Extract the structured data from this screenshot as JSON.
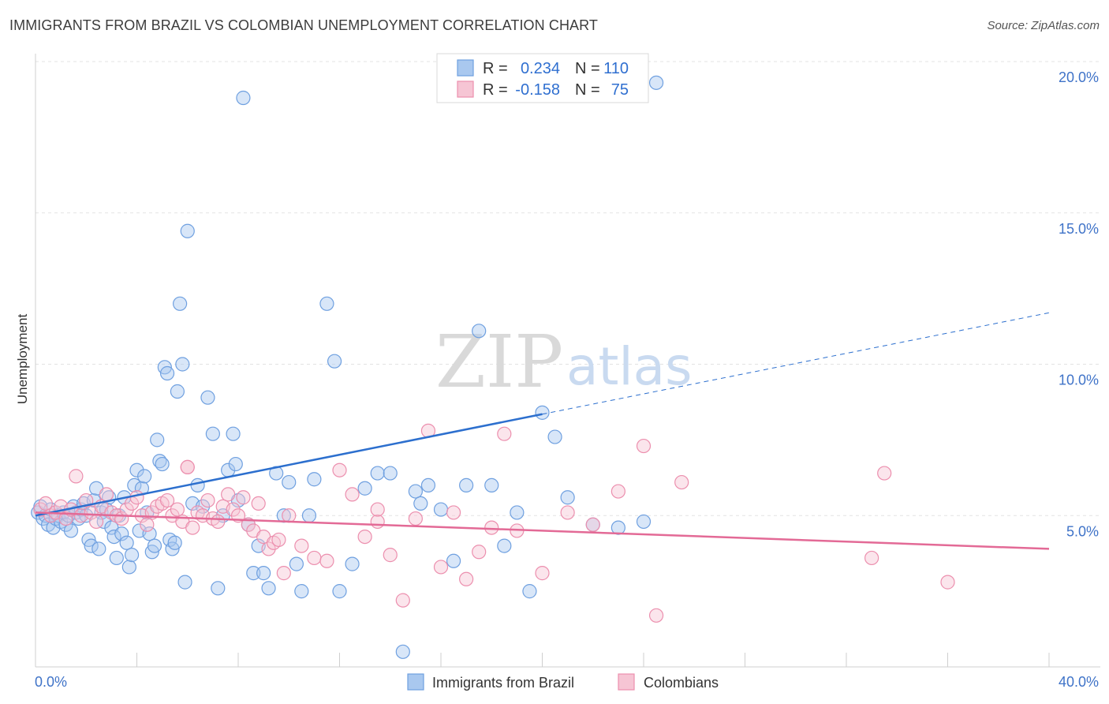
{
  "chart_data": {
    "type": "scatter",
    "title": "IMMIGRANTS FROM BRAZIL VS COLOMBIAN UNEMPLOYMENT CORRELATION CHART",
    "source": "Source: ZipAtlas.com",
    "ylabel": "Unemployment",
    "xlim": [
      0,
      40
    ],
    "ylim": [
      0,
      20
    ],
    "x_tick_labels": [
      "0.0%",
      "40.0%"
    ],
    "y_ticks": [
      5,
      10,
      15,
      20
    ],
    "y_tick_labels": [
      "5.0%",
      "10.0%",
      "15.0%",
      "20.0%"
    ],
    "grid": true,
    "legend_position": "top-center",
    "watermark": {
      "zip": "ZIP",
      "atlas": "atlas"
    },
    "legend": [
      {
        "r_label": "R =",
        "r_value": "0.234",
        "n_label": "N =",
        "n_value": "110"
      },
      {
        "r_label": "R =",
        "r_value": "-0.158",
        "n_label": "N =",
        "n_value": "75"
      }
    ],
    "series": [
      {
        "name": "Immigrants from Brazil",
        "color": "#6fa0e0",
        "fill": "#a9c8ef",
        "trend_color": "#2c6fce",
        "trend": {
          "x0": 0,
          "y0": 5.0,
          "x1": 20.0,
          "y1": 8.35,
          "dash_x1": 40.0,
          "dash_y1": 11.7
        },
        "points": [
          [
            0.1,
            5.1
          ],
          [
            0.2,
            5.3
          ],
          [
            0.3,
            4.9
          ],
          [
            0.4,
            5.0
          ],
          [
            0.5,
            4.7
          ],
          [
            0.6,
            5.2
          ],
          [
            0.7,
            4.6
          ],
          [
            0.8,
            4.9
          ],
          [
            0.9,
            5.0
          ],
          [
            1.0,
            4.8
          ],
          [
            1.1,
            5.1
          ],
          [
            1.2,
            4.7
          ],
          [
            1.3,
            5.0
          ],
          [
            1.4,
            4.5
          ],
          [
            1.5,
            5.3
          ],
          [
            1.6,
            5.1
          ],
          [
            1.7,
            4.9
          ],
          [
            1.8,
            5.2
          ],
          [
            1.9,
            5.4
          ],
          [
            2.0,
            5.0
          ],
          [
            2.1,
            4.2
          ],
          [
            2.2,
            4.0
          ],
          [
            2.3,
            5.5
          ],
          [
            2.4,
            5.9
          ],
          [
            2.5,
            3.9
          ],
          [
            2.6,
            5.1
          ],
          [
            2.7,
            4.8
          ],
          [
            2.8,
            5.2
          ],
          [
            2.9,
            5.6
          ],
          [
            3.0,
            4.6
          ],
          [
            3.1,
            4.3
          ],
          [
            3.2,
            3.6
          ],
          [
            3.3,
            5.0
          ],
          [
            3.4,
            4.4
          ],
          [
            3.5,
            5.6
          ],
          [
            3.6,
            4.1
          ],
          [
            3.7,
            3.3
          ],
          [
            3.8,
            3.7
          ],
          [
            3.9,
            6.0
          ],
          [
            4.0,
            6.5
          ],
          [
            4.1,
            4.5
          ],
          [
            4.2,
            5.9
          ],
          [
            4.3,
            6.3
          ],
          [
            4.4,
            5.1
          ],
          [
            4.5,
            4.4
          ],
          [
            4.6,
            3.8
          ],
          [
            4.7,
            4.0
          ],
          [
            4.8,
            7.5
          ],
          [
            4.9,
            6.8
          ],
          [
            5.0,
            6.7
          ],
          [
            5.1,
            9.9
          ],
          [
            5.2,
            9.7
          ],
          [
            5.3,
            4.2
          ],
          [
            5.4,
            3.9
          ],
          [
            5.5,
            4.1
          ],
          [
            5.6,
            9.1
          ],
          [
            5.7,
            12.0
          ],
          [
            5.8,
            10.0
          ],
          [
            5.9,
            2.8
          ],
          [
            6.0,
            14.4
          ],
          [
            6.2,
            5.4
          ],
          [
            6.4,
            6.0
          ],
          [
            6.6,
            5.3
          ],
          [
            6.8,
            8.9
          ],
          [
            7.0,
            7.7
          ],
          [
            7.2,
            2.6
          ],
          [
            7.4,
            5.0
          ],
          [
            7.6,
            6.5
          ],
          [
            7.8,
            7.7
          ],
          [
            7.9,
            6.7
          ],
          [
            8.0,
            5.5
          ],
          [
            8.2,
            18.8
          ],
          [
            8.4,
            4.7
          ],
          [
            8.6,
            3.1
          ],
          [
            8.8,
            4.0
          ],
          [
            9.0,
            3.1
          ],
          [
            9.2,
            2.6
          ],
          [
            9.5,
            6.4
          ],
          [
            9.8,
            5.0
          ],
          [
            10.0,
            6.1
          ],
          [
            10.3,
            3.4
          ],
          [
            10.5,
            2.5
          ],
          [
            10.8,
            5.0
          ],
          [
            11.0,
            6.2
          ],
          [
            11.5,
            12.0
          ],
          [
            11.8,
            10.1
          ],
          [
            12.0,
            2.5
          ],
          [
            12.5,
            3.4
          ],
          [
            13.0,
            5.9
          ],
          [
            13.5,
            6.4
          ],
          [
            14.0,
            6.4
          ],
          [
            14.5,
            0.5
          ],
          [
            15.0,
            5.8
          ],
          [
            15.5,
            6.0
          ],
          [
            16.0,
            5.2
          ],
          [
            16.5,
            3.5
          ],
          [
            17.0,
            6.0
          ],
          [
            17.5,
            11.1
          ],
          [
            18.0,
            6.0
          ],
          [
            18.5,
            4.0
          ],
          [
            19.0,
            5.1
          ],
          [
            19.5,
            2.5
          ],
          [
            20.0,
            8.4
          ],
          [
            20.5,
            7.6
          ],
          [
            21.0,
            5.6
          ],
          [
            22.0,
            4.7
          ],
          [
            23.0,
            4.6
          ],
          [
            24.0,
            4.8
          ],
          [
            24.5,
            19.3
          ],
          [
            15.2,
            5.4
          ]
        ]
      },
      {
        "name": "Colombians",
        "color": "#ec8fae",
        "fill": "#f6c5d4",
        "trend_color": "#e36a96",
        "trend": {
          "x0": 0,
          "y0": 5.1,
          "x1": 40.0,
          "y1": 3.9
        },
        "points": [
          [
            0.2,
            5.2
          ],
          [
            0.4,
            5.4
          ],
          [
            0.6,
            5.0
          ],
          [
            0.8,
            5.1
          ],
          [
            1.0,
            5.3
          ],
          [
            1.2,
            4.9
          ],
          [
            1.4,
            5.2
          ],
          [
            1.6,
            6.3
          ],
          [
            1.8,
            5.0
          ],
          [
            2.0,
            5.5
          ],
          [
            2.2,
            5.1
          ],
          [
            2.4,
            4.8
          ],
          [
            2.6,
            5.3
          ],
          [
            2.8,
            5.7
          ],
          [
            3.0,
            5.1
          ],
          [
            3.2,
            5.0
          ],
          [
            3.4,
            4.9
          ],
          [
            3.6,
            5.2
          ],
          [
            3.8,
            5.4
          ],
          [
            4.0,
            5.6
          ],
          [
            4.2,
            5.0
          ],
          [
            4.4,
            4.7
          ],
          [
            4.6,
            5.1
          ],
          [
            4.8,
            5.3
          ],
          [
            5.0,
            5.4
          ],
          [
            5.2,
            5.5
          ],
          [
            5.4,
            5.0
          ],
          [
            5.6,
            5.2
          ],
          [
            5.8,
            4.8
          ],
          [
            6.0,
            6.6
          ],
          [
            6.2,
            4.6
          ],
          [
            6.4,
            5.1
          ],
          [
            6.6,
            5.0
          ],
          [
            6.8,
            5.5
          ],
          [
            7.0,
            4.9
          ],
          [
            7.2,
            4.8
          ],
          [
            7.4,
            5.3
          ],
          [
            7.6,
            5.7
          ],
          [
            7.8,
            5.2
          ],
          [
            8.0,
            5.0
          ],
          [
            8.2,
            5.6
          ],
          [
            8.4,
            4.7
          ],
          [
            8.6,
            4.5
          ],
          [
            8.8,
            5.4
          ],
          [
            9.0,
            4.3
          ],
          [
            9.2,
            3.9
          ],
          [
            9.4,
            4.1
          ],
          [
            9.6,
            4.2
          ],
          [
            9.8,
            3.1
          ],
          [
            10.0,
            5.0
          ],
          [
            10.5,
            4.0
          ],
          [
            11.0,
            3.6
          ],
          [
            11.5,
            3.5
          ],
          [
            12.0,
            6.5
          ],
          [
            12.5,
            5.7
          ],
          [
            13.0,
            4.3
          ],
          [
            13.5,
            4.8
          ],
          [
            14.0,
            3.7
          ],
          [
            14.5,
            2.2
          ],
          [
            15.0,
            4.9
          ],
          [
            15.5,
            7.8
          ],
          [
            16.0,
            3.3
          ],
          [
            16.5,
            5.1
          ],
          [
            17.0,
            2.9
          ],
          [
            17.5,
            3.8
          ],
          [
            18.0,
            4.6
          ],
          [
            18.5,
            7.7
          ],
          [
            19.0,
            4.5
          ],
          [
            20.0,
            3.1
          ],
          [
            21.0,
            5.1
          ],
          [
            22.0,
            4.7
          ],
          [
            23.0,
            5.8
          ],
          [
            24.0,
            7.3
          ],
          [
            33.0,
            3.6
          ],
          [
            36.0,
            2.8
          ]
        ]
      }
    ],
    "extra_colombian_points": [
      [
        6.0,
        6.6
      ],
      [
        13.5,
        5.2
      ],
      [
        24.5,
        1.7
      ],
      [
        33.5,
        6.4
      ],
      [
        25.5,
        6.1
      ]
    ]
  }
}
